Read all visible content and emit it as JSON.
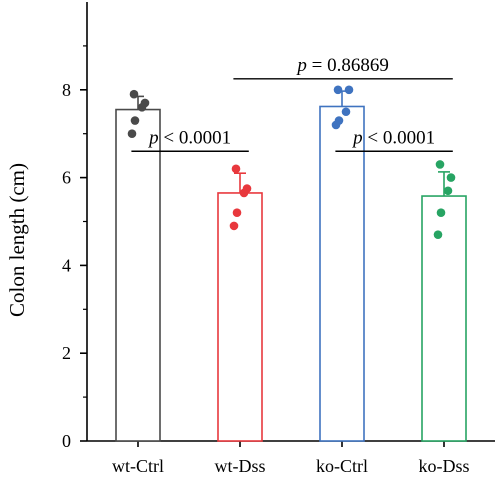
{
  "chart_data": {
    "type": "bar",
    "title": "",
    "xlabel": "",
    "ylabel": "Colon length (cm)",
    "ylim": [
      0,
      10
    ],
    "yticks": [
      0,
      2,
      4,
      6,
      8
    ],
    "grid": false,
    "categories": [
      "wt-Ctrl",
      "wt-Dss",
      "ko-Ctrl",
      "ko-Dss"
    ],
    "series": [
      {
        "values": [
          7.55,
          5.65,
          7.62,
          5.58
        ],
        "error": [
          0.3,
          0.45,
          0.35,
          0.55
        ],
        "points": [
          [
            7.9,
            7.7,
            7.6,
            7.3,
            7.0
          ],
          [
            6.2,
            5.75,
            5.65,
            5.2,
            4.9
          ],
          [
            8.0,
            8.0,
            7.5,
            7.3,
            7.2
          ],
          [
            6.3,
            6.0,
            5.7,
            5.2,
            4.7
          ]
        ]
      }
    ],
    "colors": [
      "#4a4a4a",
      "#e8383d",
      "#3f73c0",
      "#27a463"
    ],
    "comparisons": [
      {
        "from": "wt-Ctrl",
        "to": "wt-Dss",
        "label_prefix": "p",
        "label_value": " < 0.0001",
        "y": 6.6
      },
      {
        "from": "wt-Dss",
        "to": "ko-Dss",
        "label_prefix": "p",
        "label_value": " = 0.86869",
        "y": 8.25
      },
      {
        "from": "ko-Ctrl",
        "to": "ko-Dss",
        "label_prefix": "p",
        "label_value": " < 0.0001",
        "y": 6.6
      }
    ]
  }
}
